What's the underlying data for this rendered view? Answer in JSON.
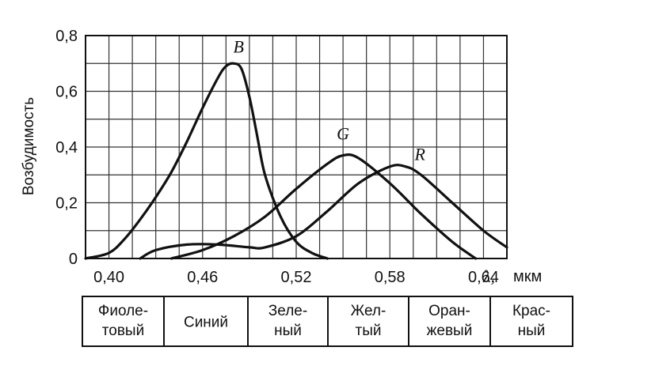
{
  "chart_data": {
    "type": "line",
    "ylabel": "Возбудимость",
    "xlabel_symbol": "λ,",
    "xlabel_unit": "мкм",
    "xlim": [
      0.385,
      0.655
    ],
    "ylim": [
      0,
      0.8
    ],
    "x_ticks": [
      "0,40",
      "0,46",
      "0,52",
      "0,58",
      "0,64"
    ],
    "x_tick_values": [
      0.4,
      0.46,
      0.52,
      0.58,
      0.64
    ],
    "y_ticks": [
      "0",
      "0,2",
      "0,4",
      "0,6",
      "0,8"
    ],
    "y_tick_values": [
      0,
      0.2,
      0.4,
      0.6,
      0.8
    ],
    "grid": true,
    "series": [
      {
        "name": "B",
        "x": [
          0.385,
          0.4,
          0.41,
          0.42,
          0.43,
          0.44,
          0.45,
          0.46,
          0.47,
          0.475,
          0.48,
          0.485,
          0.49,
          0.495,
          0.5,
          0.51,
          0.52,
          0.53,
          0.54
        ],
        "y": [
          0.0,
          0.02,
          0.07,
          0.14,
          0.22,
          0.31,
          0.42,
          0.54,
          0.65,
          0.69,
          0.7,
          0.68,
          0.58,
          0.44,
          0.3,
          0.15,
          0.06,
          0.02,
          0.0
        ]
      },
      {
        "name": "G",
        "x": [
          0.44,
          0.46,
          0.48,
          0.5,
          0.52,
          0.54,
          0.55,
          0.56,
          0.58,
          0.6,
          0.62,
          0.635
        ],
        "y": [
          0.0,
          0.03,
          0.08,
          0.15,
          0.25,
          0.34,
          0.37,
          0.36,
          0.27,
          0.16,
          0.06,
          0.0
        ]
      },
      {
        "name": "R",
        "x": [
          0.42,
          0.43,
          0.45,
          0.47,
          0.49,
          0.5,
          0.52,
          0.54,
          0.56,
          0.58,
          0.59,
          0.6,
          0.62,
          0.64,
          0.655
        ],
        "y": [
          0.0,
          0.03,
          0.05,
          0.05,
          0.04,
          0.04,
          0.08,
          0.17,
          0.27,
          0.33,
          0.33,
          0.3,
          0.2,
          0.1,
          0.04
        ]
      }
    ],
    "bands": [
      {
        "lines": [
          "Фиоле-",
          "товый"
        ]
      },
      {
        "lines": [
          "Синий"
        ]
      },
      {
        "lines": [
          "Зеле-",
          "ный"
        ]
      },
      {
        "lines": [
          "Жел-",
          "тый"
        ]
      },
      {
        "lines": [
          "Оран-",
          "жевый"
        ]
      },
      {
        "lines": [
          "Крас-",
          "ный"
        ]
      }
    ]
  }
}
